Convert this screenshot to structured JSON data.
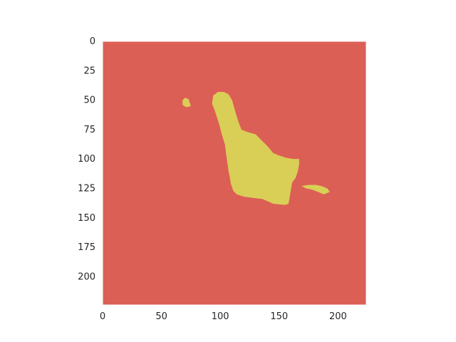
{
  "chart_data": {
    "type": "heatmap",
    "title": "",
    "xlabel": "",
    "ylabel": "",
    "image_size": [
      224,
      224
    ],
    "xlim": [
      0,
      224
    ],
    "ylim": [
      224,
      0
    ],
    "xticks": [
      0,
      50,
      100,
      150,
      200
    ],
    "yticks": [
      0,
      25,
      50,
      75,
      100,
      125,
      150,
      175,
      200
    ],
    "grid": false,
    "colors": {
      "background_class": "#dc5f56",
      "foreground_class": "#d9cf57"
    },
    "regions": [
      {
        "class": "foreground",
        "polygon": [
          [
            93,
            53
          ],
          [
            94,
            46
          ],
          [
            98,
            43
          ],
          [
            103,
            43
          ],
          [
            107,
            45
          ],
          [
            110,
            50
          ],
          [
            112,
            57
          ],
          [
            114,
            64
          ],
          [
            116,
            70
          ],
          [
            118,
            75
          ],
          [
            123,
            77
          ],
          [
            130,
            79
          ],
          [
            135,
            84
          ],
          [
            140,
            89
          ],
          [
            145,
            95
          ],
          [
            150,
            97
          ],
          [
            156,
            99
          ],
          [
            162,
            100
          ],
          [
            167,
            100
          ],
          [
            167,
            104
          ],
          [
            166,
            110
          ],
          [
            164,
            116
          ],
          [
            161,
            120
          ],
          [
            160,
            126
          ],
          [
            159,
            132
          ],
          [
            158,
            138
          ],
          [
            155,
            139
          ],
          [
            145,
            138
          ],
          [
            136,
            134
          ],
          [
            128,
            133
          ],
          [
            120,
            132
          ],
          [
            114,
            130
          ],
          [
            111,
            127
          ],
          [
            109,
            121
          ],
          [
            108,
            115
          ],
          [
            107,
            110
          ],
          [
            106,
            103
          ],
          [
            105,
            96
          ],
          [
            104,
            88
          ],
          [
            101,
            78
          ],
          [
            99,
            70
          ],
          [
            97,
            64
          ],
          [
            95,
            58
          ]
        ]
      },
      {
        "class": "foreground",
        "polygon": [
          [
            68,
            54
          ],
          [
            68,
            50
          ],
          [
            70,
            48
          ],
          [
            73,
            49
          ],
          [
            74,
            52
          ],
          [
            75,
            55
          ],
          [
            71,
            56
          ]
        ]
      },
      {
        "class": "foreground",
        "polygon": [
          [
            169,
            123
          ],
          [
            175,
            122
          ],
          [
            181,
            122
          ],
          [
            186,
            123
          ],
          [
            191,
            125
          ],
          [
            193,
            128
          ],
          [
            188,
            130
          ],
          [
            183,
            128
          ],
          [
            178,
            126
          ],
          [
            173,
            125
          ]
        ]
      }
    ]
  }
}
